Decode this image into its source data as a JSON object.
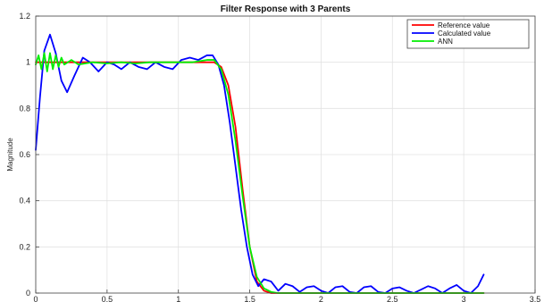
{
  "chart_data": {
    "type": "line",
    "title": "Filter Response with 3 Parents",
    "xlabel": "",
    "ylabel": "Magnitude",
    "xlim": [
      0,
      3.5
    ],
    "ylim": [
      0,
      1.2
    ],
    "xticks": [
      0,
      0.5,
      1,
      1.5,
      2,
      2.5,
      3,
      3.5
    ],
    "xtick_labels": [
      "0",
      "0.5",
      "1",
      "1.5",
      "2",
      "2.5",
      "3",
      "3.5"
    ],
    "yticks": [
      0,
      0.2,
      0.4,
      0.6,
      0.8,
      1,
      1.2
    ],
    "ytick_labels": [
      "0",
      "0.2",
      "0.4",
      "0.6",
      "0.8",
      "1",
      "1.2"
    ],
    "grid": true,
    "legend_position": "top-right",
    "series": [
      {
        "name": "Reference value",
        "color": "#ff0000",
        "x": [
          0,
          0.1,
          0.2,
          0.3,
          0.4,
          0.5,
          0.6,
          0.7,
          0.8,
          0.9,
          1.0,
          1.1,
          1.2,
          1.25,
          1.3,
          1.35,
          1.4,
          1.45,
          1.5,
          1.55,
          1.6,
          1.65,
          1.7,
          1.8,
          2.0,
          2.5,
          3.0,
          3.14
        ],
        "y": [
          1.0,
          1.0,
          1.0,
          1.0,
          1.0,
          1.0,
          1.0,
          1.0,
          1.0,
          1.0,
          1.0,
          1.0,
          1.0,
          1.0,
          0.98,
          0.9,
          0.72,
          0.45,
          0.2,
          0.05,
          0.01,
          0.0,
          0.0,
          0.0,
          0.0,
          0.0,
          0.0,
          0.0
        ]
      },
      {
        "name": "Calculated value",
        "color": "#0000ff",
        "x": [
          0,
          0.03,
          0.06,
          0.1,
          0.14,
          0.18,
          0.22,
          0.27,
          0.33,
          0.38,
          0.44,
          0.5,
          0.55,
          0.6,
          0.66,
          0.72,
          0.78,
          0.84,
          0.9,
          0.96,
          1.02,
          1.08,
          1.14,
          1.2,
          1.24,
          1.28,
          1.32,
          1.36,
          1.4,
          1.44,
          1.48,
          1.52,
          1.56,
          1.6,
          1.65,
          1.7,
          1.75,
          1.8,
          1.85,
          1.9,
          1.95,
          2.0,
          2.05,
          2.1,
          2.15,
          2.2,
          2.25,
          2.3,
          2.35,
          2.4,
          2.45,
          2.5,
          2.55,
          2.6,
          2.65,
          2.7,
          2.75,
          2.8,
          2.85,
          2.9,
          2.95,
          3.0,
          3.05,
          3.1,
          3.14
        ],
        "y": [
          0.62,
          0.85,
          1.05,
          1.12,
          1.04,
          0.92,
          0.87,
          0.94,
          1.02,
          1.0,
          0.96,
          1.0,
          0.99,
          0.97,
          1.0,
          0.98,
          0.97,
          1.0,
          0.98,
          0.97,
          1.01,
          1.02,
          1.01,
          1.03,
          1.03,
          0.99,
          0.9,
          0.74,
          0.55,
          0.36,
          0.2,
          0.08,
          0.03,
          0.06,
          0.05,
          0.01,
          0.04,
          0.03,
          0.005,
          0.025,
          0.03,
          0.01,
          0.0,
          0.025,
          0.03,
          0.005,
          0.0,
          0.025,
          0.03,
          0.005,
          0.0,
          0.02,
          0.025,
          0.01,
          0.0,
          0.015,
          0.03,
          0.02,
          0.0,
          0.02,
          0.035,
          0.01,
          0.0,
          0.03,
          0.08
        ]
      },
      {
        "name": "ANN",
        "color": "#00ee00",
        "x": [
          0,
          0.02,
          0.04,
          0.06,
          0.08,
          0.1,
          0.12,
          0.14,
          0.16,
          0.18,
          0.2,
          0.25,
          0.3,
          0.4,
          0.5,
          0.6,
          0.7,
          0.8,
          0.9,
          1.0,
          1.1,
          1.2,
          1.25,
          1.3,
          1.35,
          1.4,
          1.45,
          1.5,
          1.55,
          1.6,
          1.65,
          1.7,
          1.8,
          2.0,
          2.5,
          3.0,
          3.14
        ],
        "y": [
          0.99,
          1.03,
          0.97,
          1.04,
          0.96,
          1.04,
          0.97,
          1.03,
          0.98,
          1.02,
          0.99,
          1.01,
          0.99,
          1.0,
          0.995,
          1.0,
          0.995,
          1.0,
          1.0,
          1.0,
          1.0,
          1.01,
          1.01,
          0.97,
          0.86,
          0.66,
          0.42,
          0.2,
          0.07,
          0.02,
          0.005,
          0.0,
          0.0,
          0.0,
          0.0,
          0.0,
          0.0
        ]
      }
    ]
  }
}
